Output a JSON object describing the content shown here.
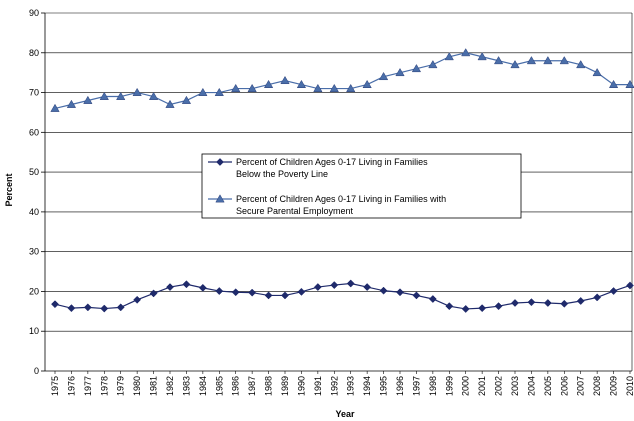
{
  "chart_data": {
    "type": "line",
    "title": "",
    "xlabel": "Year",
    "ylabel": "Percent",
    "ylim": [
      0,
      90
    ],
    "yticks": [
      0,
      10,
      20,
      30,
      40,
      50,
      60,
      70,
      80,
      90
    ],
    "grid": "horizontal",
    "legend_position": "center",
    "x": [
      "1975",
      "1976",
      "1977",
      "1978",
      "1979",
      "1980",
      "1981",
      "1982",
      "1983",
      "1984",
      "1985",
      "1986",
      "1987",
      "1988",
      "1989",
      "1990",
      "1991",
      "1992",
      "1993",
      "1994",
      "1995",
      "1996",
      "1997",
      "1998",
      "1999",
      "2000",
      "2001",
      "2002",
      "2003",
      "2004",
      "2005",
      "2006",
      "2007",
      "2008",
      "2009",
      "2010"
    ],
    "series": [
      {
        "name_lines": [
          "Percent of Children Ages 0-17 Living in Families",
          "Below the Poverty Line"
        ],
        "marker": "diamond",
        "color": "#1f2a6b",
        "values": [
          16.8,
          15.8,
          16.0,
          15.7,
          16.0,
          17.9,
          19.5,
          21.1,
          21.8,
          20.9,
          20.1,
          19.8,
          19.7,
          19.0,
          19.0,
          19.9,
          21.1,
          21.6,
          22.0,
          21.1,
          20.2,
          19.8,
          19.0,
          18.1,
          16.3,
          15.6,
          15.8,
          16.3,
          17.1,
          17.3,
          17.1,
          16.9,
          17.6,
          18.5,
          20.1,
          21.5
        ]
      },
      {
        "name_lines": [
          "Percent of Children Ages 0-17 Living in Families  with",
          "Secure Parental Employment"
        ],
        "marker": "triangle",
        "color": "#4a6ea9",
        "values": [
          66,
          67,
          68,
          69,
          69,
          70,
          69,
          67,
          68,
          70,
          70,
          71,
          71,
          72,
          73,
          72,
          71,
          71,
          71,
          72,
          74,
          75,
          76,
          77,
          79,
          80,
          79,
          78,
          77,
          78,
          78,
          78,
          77,
          75,
          72,
          72
        ]
      }
    ]
  }
}
